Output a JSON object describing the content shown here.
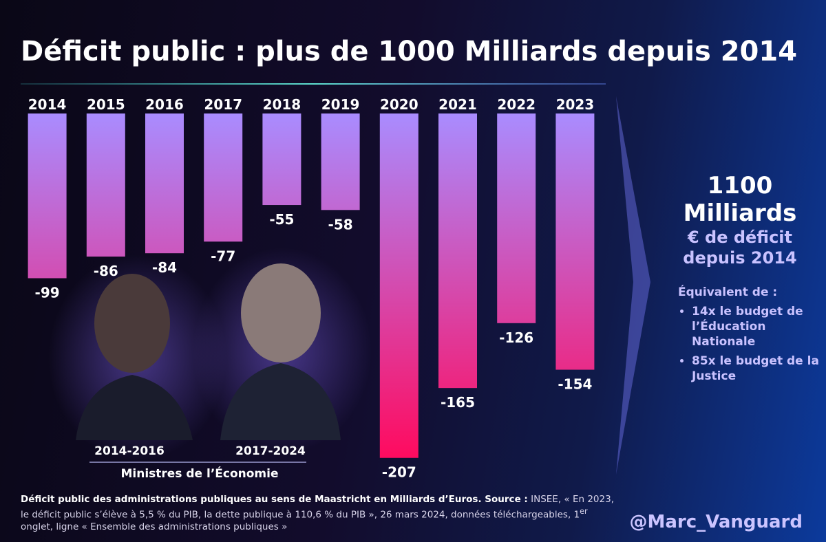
{
  "chart_data": {
    "type": "bar",
    "title": "Déficit public : plus de 1000 Milliards depuis 2014",
    "categories": [
      "2014",
      "2015",
      "2016",
      "2017",
      "2018",
      "2019",
      "2020",
      "2021",
      "2022",
      "2023"
    ],
    "values": [
      -99,
      -86,
      -84,
      -77,
      -55,
      -58,
      -207,
      -165,
      -126,
      -154
    ],
    "ylim": [
      -210,
      0
    ],
    "gradient": [
      "#a98cff",
      "#ff0a5e"
    ]
  },
  "ministers": [
    {
      "period": "2014-2016"
    },
    {
      "period": "2017-2024"
    }
  ],
  "ministers_caption": "Ministres de l’Économie",
  "summary": {
    "amount": "1100",
    "unit": "Milliards",
    "line1": "€ de déficit",
    "line2": "depuis 2014",
    "equivalent_title": "Équivalent de :",
    "bullets": [
      "14x le budget de l’Éducation Nationale",
      "85x le budget de la Justice"
    ]
  },
  "footer": {
    "bold": "Déficit public des administrations publiques au sens de Maastricht en Milliards d’Euros. Source :",
    "text": "INSEE, « En 2023, le déficit public s’élève à 5,5 % du PIB, la dette publique à 110,6 % du PIB », 26 mars 2024, données téléchargeables, 1",
    "sup": "er",
    "text_end": "onglet, ligne « Ensemble des administrations publiques »"
  },
  "handle": "@Marc_Vanguard"
}
